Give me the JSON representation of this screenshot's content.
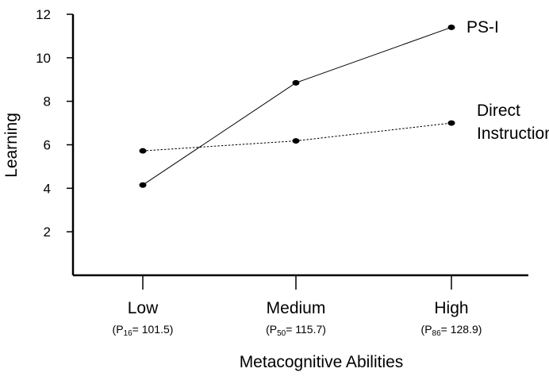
{
  "chart_data": {
    "type": "line",
    "title": "",
    "xlabel": "Metacognitive Abilities",
    "ylabel": "Learning",
    "ylim": [
      0,
      12
    ],
    "yticks": [
      2,
      4,
      6,
      8,
      10,
      12
    ],
    "categories": [
      "Low",
      "Medium",
      "High"
    ],
    "category_sublabels": [
      {
        "prefix": "(P",
        "sub": "16",
        "suffix": "= 101.5)"
      },
      {
        "prefix": "(P",
        "sub": "50",
        "suffix": "= 115.7)"
      },
      {
        "prefix": "(P",
        "sub": "86",
        "suffix": "= 128.9)"
      }
    ],
    "series": [
      {
        "name": "PS-I",
        "values": [
          4.15,
          8.85,
          11.4
        ],
        "line_style": "solid",
        "color": "#000000"
      },
      {
        "name": "Direct Instruction",
        "values": [
          5.72,
          6.18,
          7.0
        ],
        "line_style": "dotted",
        "color": "#000000"
      }
    ],
    "series_label_lines": [
      [
        "PS-I"
      ],
      [
        "Direct",
        "Instruction"
      ]
    ],
    "grid": false,
    "legend": "inline labels at right end of lines"
  }
}
